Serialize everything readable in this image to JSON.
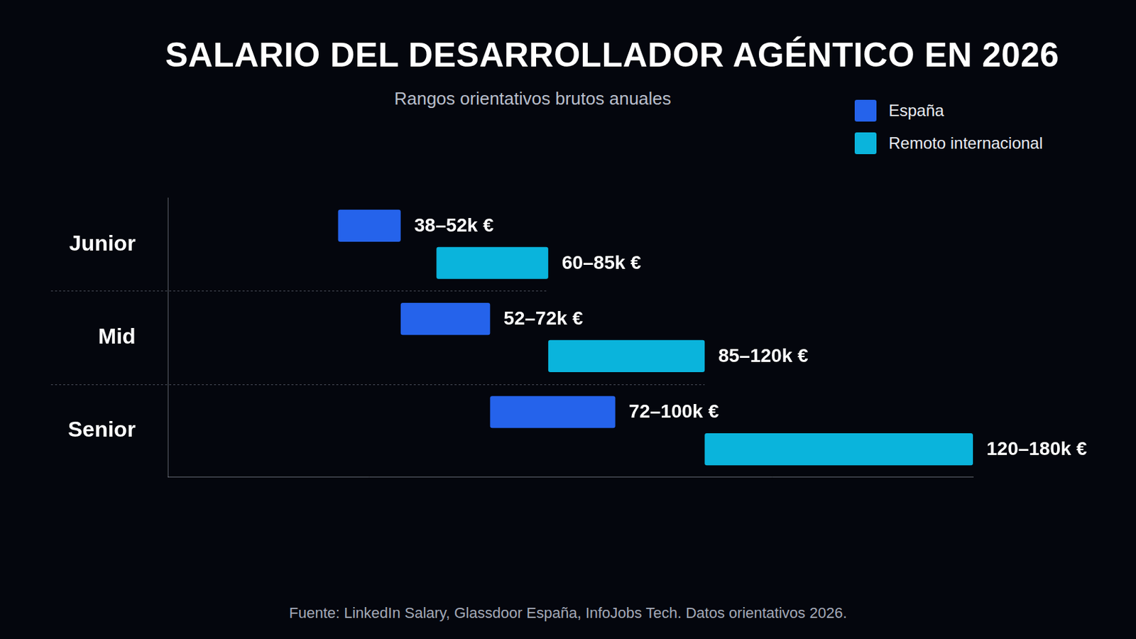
{
  "chart_data": {
    "type": "bar",
    "title": "SALARIO DEL DESARROLLADOR AGÉNTICO EN 2026",
    "subtitle": "Rangos orientativos brutos anuales",
    "source": "Fuente: LinkedIn Salary, Glassdoor España, InfoJobs Tech. Datos orientativos 2026.",
    "orientation": "horizontal",
    "categories": [
      "Junior",
      "Mid",
      "Senior"
    ],
    "series": [
      {
        "name": "España",
        "color": "#2563eb",
        "values": [
          [
            38,
            52
          ],
          [
            52,
            72
          ],
          [
            72,
            100
          ]
        ],
        "value_labels": [
          "38–52k €",
          "52–72k €",
          "72–100k €"
        ]
      },
      {
        "name": "Remoto internacional",
        "color": "#0ab4dc",
        "values": [
          [
            60,
            85
          ],
          [
            85,
            120
          ],
          [
            120,
            180
          ]
        ],
        "value_labels": [
          "60–85k €",
          "85–120k €",
          "120–180k €"
        ]
      }
    ],
    "xlim": [
      0,
      180
    ],
    "tick_labels": "y",
    "grid": false,
    "legend": "top-right",
    "data_labels": true
  }
}
